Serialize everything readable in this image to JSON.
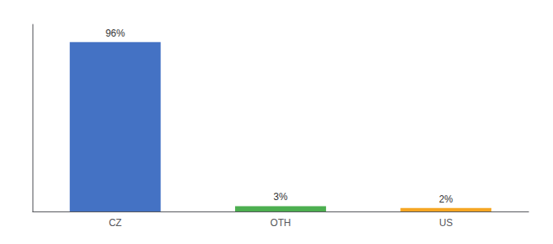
{
  "chart_data": {
    "type": "bar",
    "categories": [
      "CZ",
      "OTH",
      "US"
    ],
    "values": [
      96,
      3,
      2
    ],
    "value_labels": [
      "96%",
      "3%",
      "2%"
    ],
    "colors": [
      "#4472c4",
      "#4caf50",
      "#f5a623"
    ],
    "ylim": [
      0,
      106
    ],
    "grid": false,
    "tick_labels": "x",
    "data_labels": true
  }
}
